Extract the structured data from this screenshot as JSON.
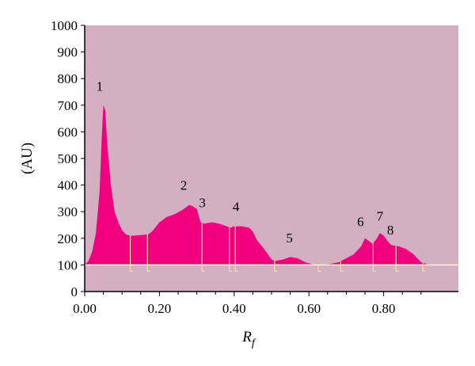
{
  "chart_data": {
    "type": "area",
    "xlabel": "R",
    "xlabel_sub": "f",
    "ylabel": "(AU)",
    "xlim": [
      0,
      1.0
    ],
    "ylim": [
      0,
      1000
    ],
    "x_ticks": [
      {
        "value": 0.0,
        "label": "0.00"
      },
      {
        "value": 0.2,
        "label": "0.20"
      },
      {
        "value": 0.4,
        "label": "0.40"
      },
      {
        "value": 0.6,
        "label": "0.60"
      },
      {
        "value": 0.8,
        "label": "0.80"
      }
    ],
    "y_ticks": [
      {
        "value": 0,
        "label": "0"
      },
      {
        "value": 100,
        "label": "100"
      },
      {
        "value": 200,
        "label": "200"
      },
      {
        "value": 300,
        "label": "300"
      },
      {
        "value": 400,
        "label": "400"
      },
      {
        "value": 500,
        "label": "500"
      },
      {
        "value": 600,
        "label": "600"
      },
      {
        "value": 700,
        "label": "700"
      },
      {
        "value": 800,
        "label": "800"
      },
      {
        "value": 900,
        "label": "900"
      },
      {
        "value": 1000,
        "label": "1000"
      }
    ],
    "baseline": 100,
    "x": [
      0.0,
      0.01,
      0.02,
      0.03,
      0.04,
      0.045,
      0.05,
      0.055,
      0.06,
      0.07,
      0.08,
      0.09,
      0.1,
      0.11,
      0.12,
      0.13,
      0.15,
      0.17,
      0.18,
      0.2,
      0.22,
      0.24,
      0.26,
      0.28,
      0.29,
      0.3,
      0.31,
      0.32,
      0.34,
      0.36,
      0.38,
      0.39,
      0.4,
      0.42,
      0.44,
      0.45,
      0.46,
      0.48,
      0.5,
      0.51,
      0.53,
      0.55,
      0.57,
      0.59,
      0.61,
      0.63,
      0.65,
      0.68,
      0.7,
      0.72,
      0.74,
      0.75,
      0.76,
      0.77,
      0.78,
      0.79,
      0.8,
      0.81,
      0.82,
      0.84,
      0.86,
      0.88,
      0.9,
      0.92,
      0.95,
      1.0
    ],
    "y": [
      100,
      115,
      150,
      220,
      380,
      560,
      700,
      680,
      560,
      400,
      300,
      260,
      230,
      215,
      210,
      210,
      212,
      215,
      225,
      260,
      280,
      290,
      305,
      325,
      320,
      310,
      260,
      255,
      260,
      255,
      245,
      240,
      245,
      245,
      240,
      225,
      195,
      160,
      120,
      115,
      120,
      130,
      125,
      110,
      102,
      100,
      102,
      110,
      125,
      140,
      170,
      200,
      190,
      180,
      195,
      220,
      210,
      190,
      175,
      170,
      160,
      140,
      110,
      102,
      100,
      100
    ],
    "colors": {
      "plot_bg": "#d3afc2",
      "fill": "#f0007e",
      "marker": "#f4e4a0",
      "baseline": "#f8f4d8"
    },
    "markers": [
      0.122,
      0.168,
      0.314,
      0.387,
      0.403,
      0.508,
      0.625,
      0.685,
      0.772,
      0.833,
      0.905
    ],
    "peak_labels": [
      {
        "label": "1",
        "x": 0.04,
        "y": 755
      },
      {
        "label": "2",
        "x": 0.265,
        "y": 382
      },
      {
        "label": "3",
        "x": 0.315,
        "y": 317
      },
      {
        "label": "4",
        "x": 0.405,
        "y": 302
      },
      {
        "label": "5",
        "x": 0.548,
        "y": 185
      },
      {
        "label": "6",
        "x": 0.738,
        "y": 245
      },
      {
        "label": "7",
        "x": 0.79,
        "y": 267
      },
      {
        "label": "8",
        "x": 0.818,
        "y": 215
      }
    ]
  }
}
